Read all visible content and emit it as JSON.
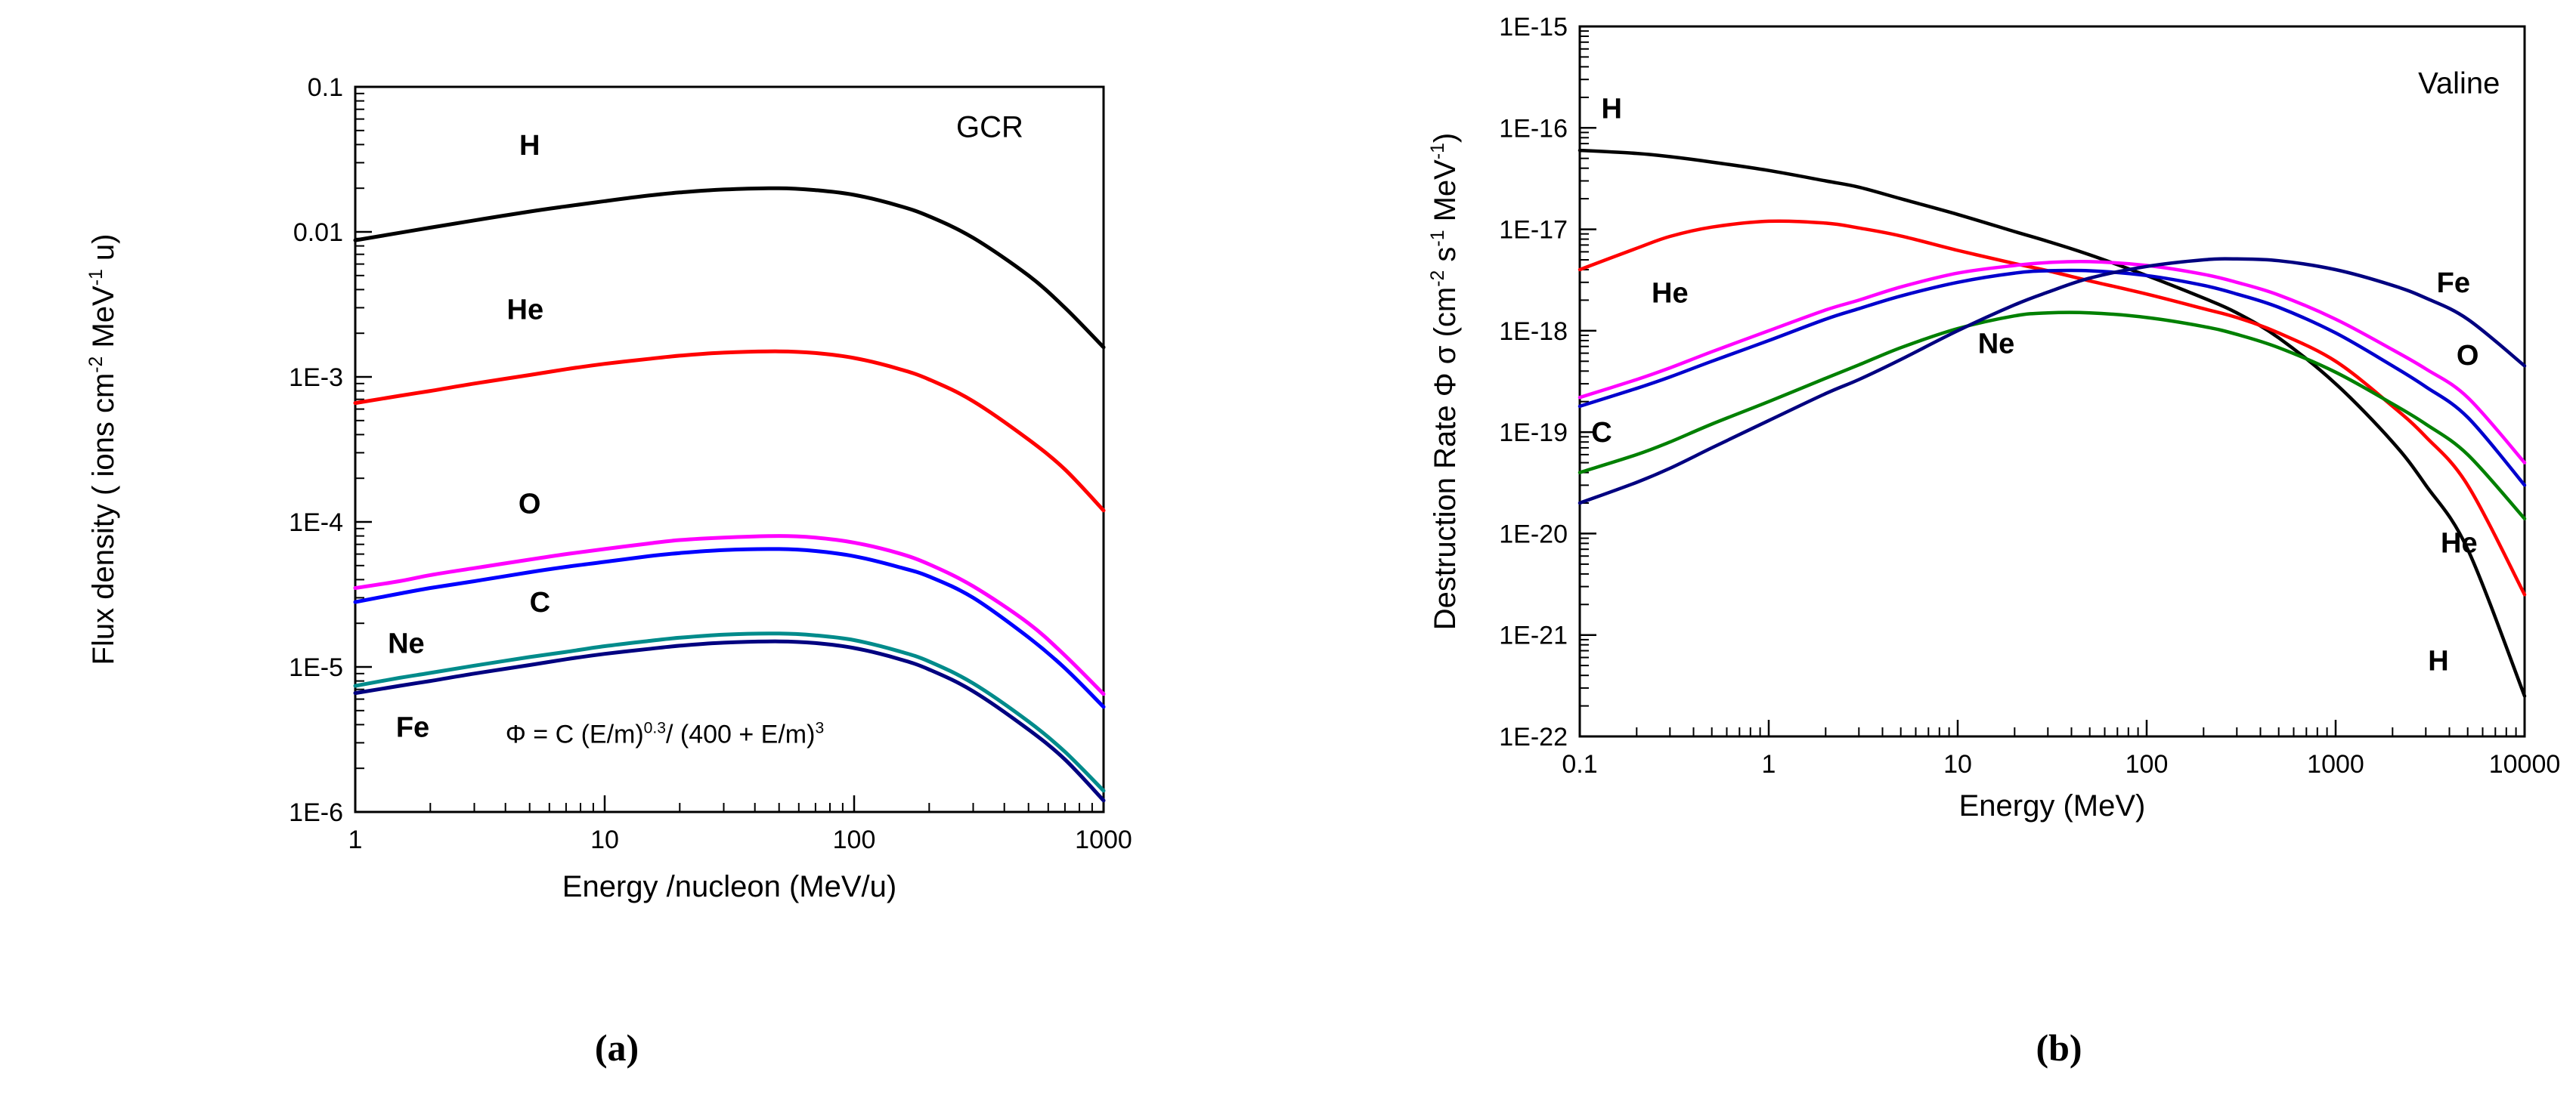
{
  "page": {
    "background": "#ffffff"
  },
  "captions": {
    "a": "(a)",
    "b": "(b)"
  },
  "chart_data": [
    {
      "id": "a",
      "type": "line",
      "panel_caption": "(a)",
      "annotation": "GCR",
      "annotation_pos": [
        350,
        0.045
      ],
      "xlabel": "Energy /nucleon   (MeV/u)",
      "ylabel": "Flux density   ( ions cm-2 MeV-1 u)",
      "ylabel_segments": [
        {
          "t": "Flux density   ( ions cm"
        },
        {
          "t": "-2",
          "sup": true
        },
        {
          "t": " MeV"
        },
        {
          "t": "-1",
          "sup": true
        },
        {
          "t": " u)"
        }
      ],
      "xscale": "log",
      "yscale": "log",
      "xlim": [
        1,
        1000
      ],
      "ylim": [
        1e-06,
        0.1
      ],
      "grid": false,
      "x_ticks": [
        {
          "v": 1,
          "label": "1"
        },
        {
          "v": 10,
          "label": "10"
        },
        {
          "v": 100,
          "label": "100"
        },
        {
          "v": 1000,
          "label": "1000"
        }
      ],
      "y_ticks": [
        {
          "v": 0.1,
          "label": "0.1"
        },
        {
          "v": 0.01,
          "label": "0.01"
        },
        {
          "v": 0.001,
          "label": "1E-3"
        },
        {
          "v": 0.0001,
          "label": "1E-4"
        },
        {
          "v": 1e-05,
          "label": "1E-5"
        },
        {
          "v": 1e-06,
          "label": "1E-6"
        }
      ],
      "x": [
        1,
        1.5,
        2,
        3,
        5,
        7,
        10,
        15,
        20,
        30,
        50,
        70,
        100,
        150,
        200,
        300,
        500,
        700,
        1000
      ],
      "series": [
        {
          "name": "H",
          "color": "#000000",
          "label_pos": [
            5,
            0.034
          ],
          "values": [
            0.00875,
            0.00984,
            0.0107,
            0.012,
            0.0138,
            0.015,
            0.0163,
            0.0178,
            0.0187,
            0.0196,
            0.02,
            0.0194,
            0.018,
            0.0152,
            0.0128,
            0.0091,
            0.005,
            0.003,
            0.0016
          ]
        },
        {
          "name": "He",
          "color": "#ff0000",
          "label_pos": [
            4.8,
            0.0025
          ],
          "values": [
            0.00066,
            0.00074,
            0.0008,
            0.0009,
            0.00103,
            0.00113,
            0.00123,
            0.00133,
            0.0014,
            0.00147,
            0.0015,
            0.00146,
            0.00135,
            0.00114,
            0.00096,
            0.00068,
            0.00037,
            0.00023,
            0.00012
          ]
        },
        {
          "name": "O",
          "color": "#ff00ff",
          "label_pos": [
            5,
            0.000115
          ],
          "values": [
            3.5e-05,
            3.9e-05,
            4.3e-05,
            4.8e-05,
            5.5e-05,
            6e-05,
            6.5e-05,
            7.1e-05,
            7.5e-05,
            7.8e-05,
            8e-05,
            7.8e-05,
            7.2e-05,
            6.1e-05,
            5.1e-05,
            3.6e-05,
            2e-05,
            1.2e-05,
            6.5e-06
          ]
        },
        {
          "name": "C",
          "color": "#0000ff",
          "label_pos": [
            5.5,
            2.4e-05
          ],
          "values": [
            2.8e-05,
            3.2e-05,
            3.5e-05,
            3.9e-05,
            4.5e-05,
            4.9e-05,
            5.3e-05,
            5.8e-05,
            6.1e-05,
            6.4e-05,
            6.5e-05,
            6.3e-05,
            5.8e-05,
            4.9e-05,
            4.2e-05,
            3e-05,
            1.6e-05,
            9.8e-06,
            5.3e-06
          ]
        },
        {
          "name": "Ne",
          "color": "#008b8b",
          "label_pos": [
            1.6,
            1.25e-05
          ],
          "values": [
            7.4e-06,
            8.4e-06,
            9.1e-06,
            1.02e-05,
            1.17e-05,
            1.27e-05,
            1.39e-05,
            1.51e-05,
            1.59e-05,
            1.67e-05,
            1.7e-05,
            1.65e-05,
            1.53e-05,
            1.29e-05,
            1.09e-05,
            7.7e-06,
            4.2e-06,
            2.6e-06,
            1.4e-06
          ]
        },
        {
          "name": "Fe",
          "color": "#000080",
          "label_pos": [
            1.7,
            3.3e-06
          ],
          "values": [
            6.6e-06,
            7.4e-06,
            8e-06,
            9e-06,
            1.03e-05,
            1.13e-05,
            1.23e-05,
            1.33e-05,
            1.4e-05,
            1.47e-05,
            1.5e-05,
            1.46e-05,
            1.35e-05,
            1.14e-05,
            9.6e-06,
            6.8e-06,
            3.7e-06,
            2.3e-06,
            1.2e-06
          ]
        }
      ],
      "formula": "Φ = C (E/m)^0.3 / (400 + E/m)^3",
      "formula_segments": [
        {
          "t": "Φ = C (E/m)"
        },
        {
          "t": "0.3",
          "sup": true
        },
        {
          "t": "/ (400 + E/m)"
        },
        {
          "t": "3",
          "sup": true
        }
      ],
      "formula_pos": [
        4,
        3e-06
      ]
    },
    {
      "id": "b",
      "type": "line",
      "panel_caption": "(b)",
      "annotation": "Valine",
      "annotation_pos": [
        4500,
        2.2e-16
      ],
      "xlabel": "Energy (MeV)",
      "ylabel": "Destruction Rate Φ σ  (cm-2 s-1 MeV-1)",
      "ylabel_segments": [
        {
          "t": "Destruction Rate Φ σ  (cm"
        },
        {
          "t": "-2",
          "sup": true
        },
        {
          "t": " s"
        },
        {
          "t": "-1",
          "sup": true
        },
        {
          "t": " MeV"
        },
        {
          "t": "-1",
          "sup": true
        },
        {
          "t": ")"
        }
      ],
      "xscale": "log",
      "yscale": "log",
      "xlim": [
        0.1,
        10000
      ],
      "ylim": [
        1e-22,
        1e-15
      ],
      "grid": false,
      "x_ticks": [
        {
          "v": 0.1,
          "label": "0.1"
        },
        {
          "v": 1,
          "label": "1"
        },
        {
          "v": 10,
          "label": "10"
        },
        {
          "v": 100,
          "label": "100"
        },
        {
          "v": 1000,
          "label": "1000"
        },
        {
          "v": 10000,
          "label": "10000"
        }
      ],
      "y_ticks": [
        {
          "v": 1e-15,
          "label": "1E-15"
        },
        {
          "v": 1e-16,
          "label": "1E-16"
        },
        {
          "v": 1e-17,
          "label": "1E-17"
        },
        {
          "v": 1e-18,
          "label": "1E-18"
        },
        {
          "v": 1e-19,
          "label": "1E-19"
        },
        {
          "v": 1e-20,
          "label": "1E-20"
        },
        {
          "v": 1e-21,
          "label": "1E-21"
        },
        {
          "v": 1e-22,
          "label": "1E-22"
        }
      ],
      "x": [
        0.1,
        0.2,
        0.3,
        0.5,
        1,
        2,
        3,
        5,
        10,
        20,
        30,
        50,
        100,
        200,
        300,
        500,
        1000,
        2000,
        3000,
        5000,
        10000
      ],
      "series": [
        {
          "name": "H",
          "color": "#000000",
          "label_pos": [
            0.13,
            1.25e-16
          ],
          "label_anchor": "start",
          "values": [
            6e-17,
            5.6e-17,
            5.2e-17,
            4.6e-17,
            3.8e-17,
            3e-17,
            2.6e-17,
            2e-17,
            1.4e-17,
            9.5e-18,
            7.6e-18,
            5.6e-18,
            3.5e-18,
            2.1e-18,
            1.5e-18,
            8.5e-19,
            3e-19,
            8e-20,
            3e-20,
            7e-21,
            2.5e-22
          ]
        },
        {
          "name": "He",
          "color": "#ff0000",
          "label_pos": [
            0.3,
            1.9e-18
          ],
          "values": [
            4e-18,
            6.5e-18,
            8.5e-18,
            1.05e-17,
            1.2e-17,
            1.15e-17,
            1.03e-17,
            8.6e-18,
            6.2e-18,
            4.6e-18,
            3.9e-18,
            3.1e-18,
            2.3e-18,
            1.65e-18,
            1.35e-18,
            9.5e-19,
            5e-19,
            1.8e-19,
            9e-20,
            3e-20,
            2.5e-21
          ]
        },
        {
          "name": "C",
          "color": "#0000cd",
          "label_pos": [
            0.115,
            8e-20
          ],
          "label_anchor": "start",
          "values": [
            1.8e-19,
            2.7e-19,
            3.5e-19,
            5e-19,
            8e-19,
            1.3e-18,
            1.65e-18,
            2.2e-18,
            3e-18,
            3.7e-18,
            3.9e-18,
            3.9e-18,
            3.5e-18,
            2.8e-18,
            2.3e-18,
            1.7e-18,
            9.5e-19,
            4.5e-19,
            2.8e-19,
            1.4e-19,
            3e-20
          ]
        },
        {
          "name": "O",
          "color": "#ff00ff",
          "label_pos": [
            5000,
            4.6e-19
          ],
          "values": [
            2.2e-19,
            3.3e-19,
            4.3e-19,
            6.2e-19,
            1e-18,
            1.6e-18,
            2e-18,
            2.7e-18,
            3.7e-18,
            4.4e-18,
            4.7e-18,
            4.8e-18,
            4.4e-18,
            3.6e-18,
            3e-18,
            2.25e-18,
            1.3e-18,
            6.5e-19,
            4.2e-19,
            2.2e-19,
            5e-20
          ]
        },
        {
          "name": "Ne",
          "color": "#008000",
          "label_pos": [
            16,
            6e-19
          ],
          "values": [
            4e-20,
            6e-20,
            8e-20,
            1.2e-19,
            2e-19,
            3.4e-19,
            4.6e-19,
            6.8e-19,
            1.05e-18,
            1.4e-18,
            1.5e-18,
            1.5e-18,
            1.35e-18,
            1.1e-18,
            9.2e-19,
            6.8e-19,
            3.9e-19,
            1.9e-19,
            1.2e-19,
            6e-20,
            1.4e-20
          ]
        },
        {
          "name": "Fe",
          "color": "#000080",
          "label_pos": [
            4200,
            2.4e-18
          ],
          "values": [
            2e-20,
            3.2e-20,
            4.4e-20,
            7e-20,
            1.3e-19,
            2.4e-19,
            3.3e-19,
            5.2e-19,
            1e-18,
            1.8e-18,
            2.4e-18,
            3.3e-18,
            4.3e-18,
            5e-18,
            5.1e-18,
            4.9e-18,
            4e-18,
            2.8e-18,
            2.1e-18,
            1.3e-18,
            4.5e-19
          ]
        }
      ],
      "extra_labels": [
        {
          "text": "He",
          "color": "#ff0000",
          "pos": [
            4500,
            6.5e-21
          ]
        },
        {
          "text": "H",
          "color": "#000000",
          "pos": [
            3500,
            4.5e-22
          ]
        }
      ]
    }
  ]
}
